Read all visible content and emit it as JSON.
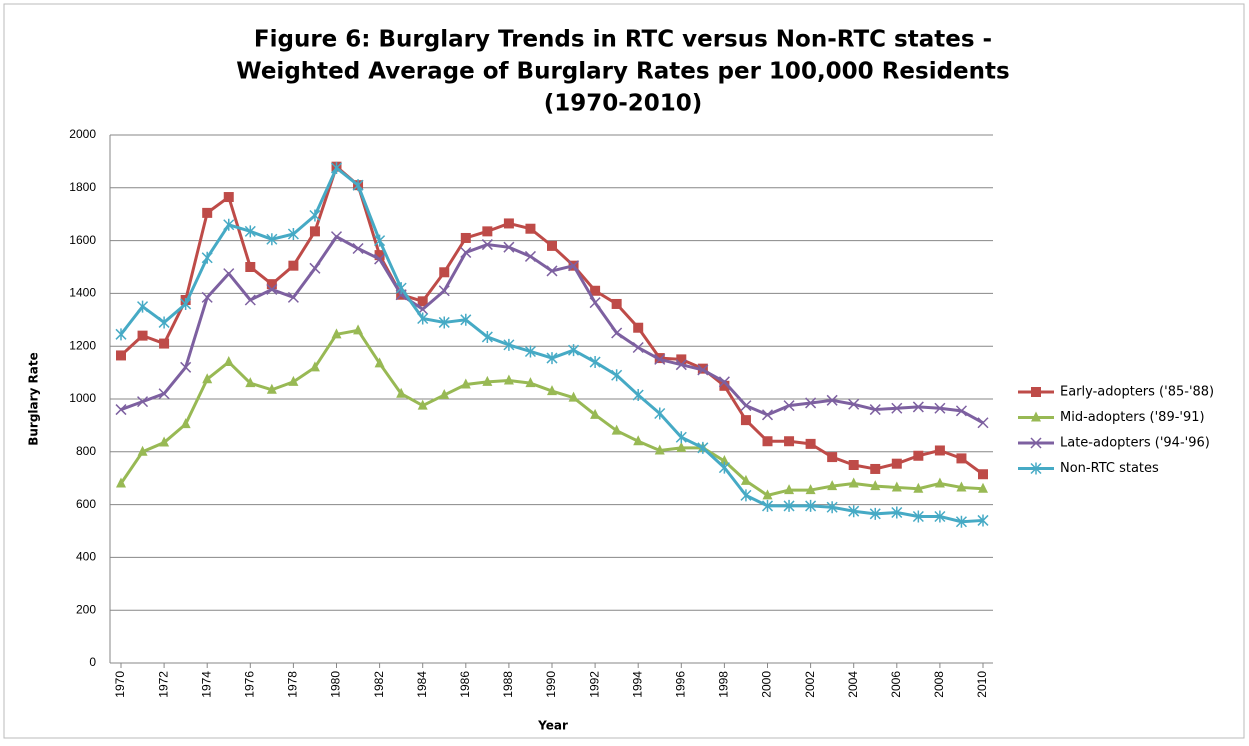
{
  "chart_data": {
    "type": "line",
    "title": [
      "Figure 6:  Burglary Trends in RTC versus Non-RTC states -",
      "Weighted Average of Burglary Rates per 100,000 Residents",
      "(1970-2010)"
    ],
    "x_label": "Year",
    "y_label": "Burglary Rate",
    "x": [
      1970,
      1971,
      1972,
      1973,
      1974,
      1975,
      1976,
      1977,
      1978,
      1979,
      1980,
      1981,
      1982,
      1983,
      1984,
      1985,
      1986,
      1987,
      1988,
      1989,
      1990,
      1991,
      1992,
      1993,
      1994,
      1995,
      1996,
      1997,
      1998,
      1999,
      2000,
      2001,
      2002,
      2003,
      2004,
      2005,
      2006,
      2007,
      2008,
      2009,
      2010
    ],
    "xlim": [
      1970,
      2010
    ],
    "xticks": [
      1970,
      1972,
      1974,
      1976,
      1978,
      1980,
      1982,
      1984,
      1986,
      1988,
      1990,
      1992,
      1994,
      1996,
      1998,
      2000,
      2002,
      2004,
      2006,
      2008,
      2010
    ],
    "ylim": [
      0,
      2000
    ],
    "yticks": [
      0,
      200,
      400,
      600,
      800,
      1000,
      1200,
      1400,
      1600,
      1800,
      2000
    ],
    "grid": true,
    "legend": "right",
    "series": [
      {
        "name": "Early-adopters ('85-'88)",
        "color": "#be4b48",
        "marker": "square",
        "values": [
          1165,
          1240,
          1210,
          1375,
          1705,
          1765,
          1500,
          1435,
          1505,
          1635,
          1880,
          1810,
          1545,
          1395,
          1370,
          1480,
          1610,
          1635,
          1665,
          1645,
          1580,
          1505,
          1410,
          1360,
          1270,
          1155,
          1150,
          1115,
          1050,
          920,
          840,
          840,
          830,
          780,
          750,
          735,
          755,
          785,
          805,
          775,
          715
        ]
      },
      {
        "name": "Mid-adopters ('89-'91)",
        "color": "#98b954",
        "marker": "triangle",
        "values": [
          680,
          800,
          835,
          905,
          1075,
          1140,
          1060,
          1035,
          1065,
          1120,
          1245,
          1260,
          1135,
          1020,
          975,
          1015,
          1055,
          1065,
          1070,
          1060,
          1030,
          1005,
          940,
          880,
          840,
          805,
          815,
          815,
          765,
          690,
          635,
          655,
          655,
          670,
          680,
          670,
          665,
          660,
          680,
          665,
          660
        ]
      },
      {
        "name": "Late-adopters ('94-'96)",
        "color": "#7d60a0",
        "marker": "x",
        "values": [
          960,
          990,
          1020,
          1120,
          1385,
          1475,
          1375,
          1415,
          1385,
          1495,
          1615,
          1570,
          1530,
          1395,
          1340,
          1410,
          1555,
          1585,
          1575,
          1540,
          1485,
          1505,
          1365,
          1250,
          1195,
          1150,
          1130,
          1110,
          1065,
          975,
          940,
          975,
          985,
          995,
          980,
          960,
          965,
          970,
          965,
          955,
          910
        ]
      },
      {
        "name": "Non-RTC states",
        "color": "#46aac5",
        "marker": "star",
        "values": [
          1245,
          1350,
          1290,
          1360,
          1535,
          1660,
          1635,
          1605,
          1625,
          1695,
          1875,
          1810,
          1600,
          1420,
          1305,
          1290,
          1300,
          1235,
          1205,
          1180,
          1155,
          1185,
          1140,
          1090,
          1015,
          945,
          855,
          815,
          740,
          635,
          595,
          595,
          595,
          590,
          575,
          565,
          570,
          555,
          555,
          535,
          540
        ]
      }
    ]
  }
}
